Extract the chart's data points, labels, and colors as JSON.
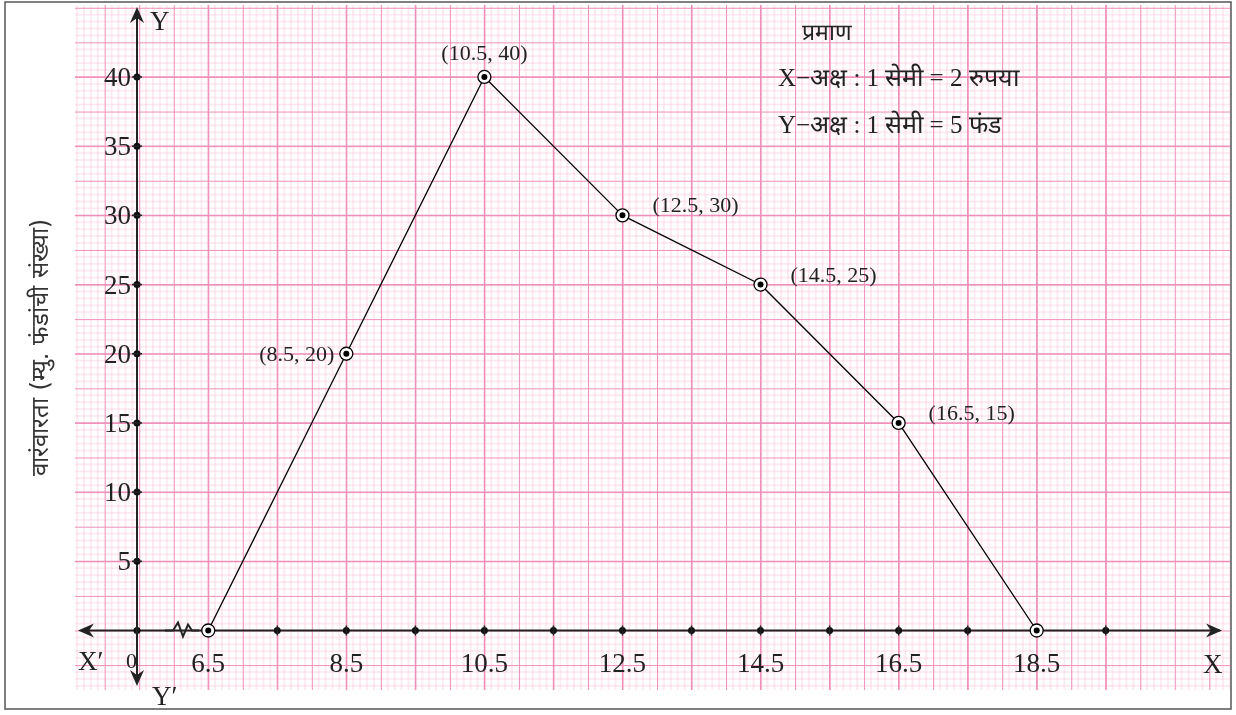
{
  "chart_data": {
    "type": "line",
    "ylabel": "वारंवारता (म्यु. फंडांची संख्या)",
    "x": [
      6.5,
      8.5,
      10.5,
      12.5,
      14.5,
      16.5,
      18.5
    ],
    "values": [
      0,
      20,
      40,
      30,
      25,
      15,
      0
    ],
    "color": "#000000",
    "marker": "circle",
    "line_style": "solid",
    "grid": true,
    "xlim": [
      4.57,
      21.3
    ],
    "ylim": [
      -4.3,
      45.2
    ],
    "xticks": [
      6.5,
      {
        "value": 7.5,
        "label": null
      },
      8.5,
      {
        "value": 9.5,
        "label": null
      },
      10.5,
      {
        "value": 11.5,
        "label": null
      },
      12.5,
      {
        "value": 13.5,
        "label": null
      },
      14.5,
      {
        "value": 15.5,
        "label": null
      },
      16.5,
      {
        "value": 17.5,
        "label": null
      },
      18.5,
      {
        "value": 19.5,
        "label": null
      }
    ],
    "yticks": [
      5,
      10,
      15,
      20,
      25,
      30,
      35,
      40
    ],
    "annotations": [
      {
        "text": "(8.5, 20)",
        "x": 8.5,
        "y": 20
      },
      {
        "text": "(10.5, 40)",
        "x": 10.5,
        "y": 40
      },
      {
        "text": "(12.5, 30)",
        "x": 12.5,
        "y": 30
      },
      {
        "text": "(14.5, 25)",
        "x": 14.5,
        "y": 25
      },
      {
        "text": "(16.5, 15)",
        "x": 16.5,
        "y": 15
      },
      "प्रमाण",
      "X−अक्ष : 1 सेमी = 2 रुपया",
      "Y−अक्ष : 1 सेमी = 5 फंड",
      "X",
      "X′",
      "Y",
      "Y′",
      "0"
    ]
  }
}
